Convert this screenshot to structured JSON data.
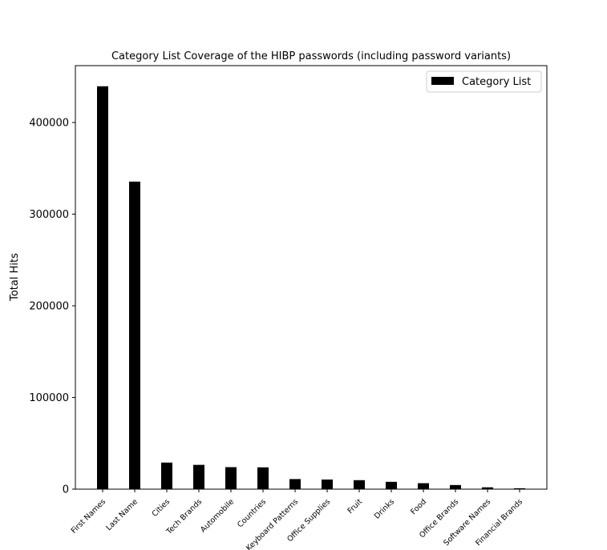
{
  "chart_data": {
    "type": "bar",
    "title": "Category List Coverage of the HIBP passwords (including password variants)",
    "xlabel": "",
    "ylabel": "Total Hits",
    "categories": [
      "First Names",
      "Last Name",
      "Cities",
      "Tech Brands",
      "Automobile",
      "Countries",
      "Keyboard Patterns",
      "Office Supplies",
      "Fruit",
      "Drinks",
      "Food",
      "Office Brands",
      "Software Names",
      "Financial Brands"
    ],
    "series": [
      {
        "name": "Category List",
        "color": "#000000",
        "values": [
          439500,
          335500,
          29000,
          26500,
          24000,
          23800,
          11000,
          10500,
          9800,
          8000,
          6500,
          4500,
          2000,
          1000
        ]
      }
    ],
    "ylim": [
      0,
      462000
    ],
    "yticks": [
      0,
      100000,
      200000,
      300000,
      400000
    ],
    "legend_position": "top-right",
    "grid": false
  }
}
